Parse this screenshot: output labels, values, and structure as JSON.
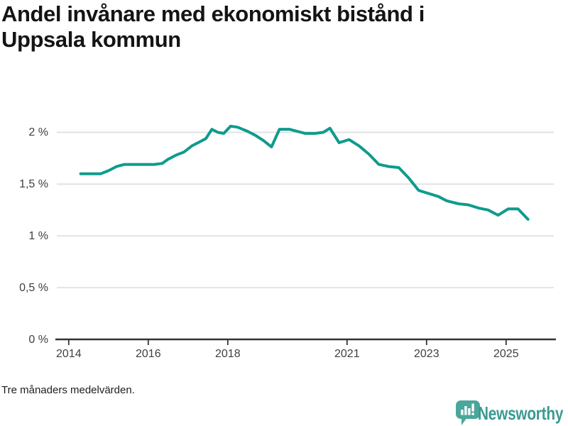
{
  "title": {
    "full": "Andel invånare med ekonomiskt bistånd i Uppsala kommun",
    "line1": "Andel invånare med ekonomiskt bistånd i",
    "line2": "Uppsala kommun"
  },
  "footnote": "Tre månaders medelvärden.",
  "branding": {
    "name": "Newsworthy",
    "icon": "newsworthy-speech-bubble-bar-chart-icon"
  },
  "colors": {
    "background": "#ffffff",
    "line": "#0f9b8d",
    "grid": "#e0e0e0",
    "axis": "#333333",
    "tick_label": "#404040",
    "title_text": "#141414",
    "footnote_text": "#1d1d1d",
    "brand_icon": "#4ba69b",
    "brand_text": "#3a9a90"
  },
  "chart_data": {
    "type": "line",
    "title": "Andel invånare med ekonomiskt bistånd i Uppsala kommun",
    "subtitle": "Tre månaders medelvärden.",
    "unit": "%",
    "decimal_separator": ",",
    "grid": "horizontal",
    "legend": "none",
    "xlim": [
      2013.7,
      2026.2
    ],
    "ylim": [
      0,
      2.25
    ],
    "y_ticks": [
      {
        "label": "0 %",
        "value": 0
      },
      {
        "label": "0,5 %",
        "value": 0.5
      },
      {
        "label": "1 %",
        "value": 1
      },
      {
        "label": "1,5 %",
        "value": 1.5
      },
      {
        "label": "2 %",
        "value": 2
      }
    ],
    "x_ticks": [
      {
        "label": "2014",
        "year": 2014
      },
      {
        "label": "2016",
        "year": 2016
      },
      {
        "label": "2018",
        "year": 2018
      },
      {
        "label": "2021",
        "year": 2021
      },
      {
        "label": "2023",
        "year": 2023
      },
      {
        "label": "2025",
        "year": 2025
      }
    ],
    "series": [
      {
        "name": "Andel invånare med ekonomiskt bistånd, Uppsala kommun",
        "points": [
          [
            2014.3,
            1.6
          ],
          [
            2014.55,
            1.6
          ],
          [
            2014.8,
            1.6
          ],
          [
            2015.0,
            1.63
          ],
          [
            2015.2,
            1.67
          ],
          [
            2015.4,
            1.69
          ],
          [
            2015.65,
            1.69
          ],
          [
            2015.9,
            1.69
          ],
          [
            2016.15,
            1.69
          ],
          [
            2016.35,
            1.7
          ],
          [
            2016.5,
            1.74
          ],
          [
            2016.7,
            1.78
          ],
          [
            2016.9,
            1.81
          ],
          [
            2017.1,
            1.87
          ],
          [
            2017.3,
            1.91
          ],
          [
            2017.45,
            1.94
          ],
          [
            2017.6,
            2.03
          ],
          [
            2017.75,
            2.0
          ],
          [
            2017.9,
            1.99
          ],
          [
            2018.07,
            2.06
          ],
          [
            2018.25,
            2.05
          ],
          [
            2018.5,
            2.01
          ],
          [
            2018.7,
            1.97
          ],
          [
            2018.9,
            1.92
          ],
          [
            2019.1,
            1.86
          ],
          [
            2019.3,
            2.03
          ],
          [
            2019.55,
            2.03
          ],
          [
            2019.75,
            2.01
          ],
          [
            2019.95,
            1.99
          ],
          [
            2020.2,
            1.99
          ],
          [
            2020.4,
            2.0
          ],
          [
            2020.57,
            2.04
          ],
          [
            2020.8,
            1.9
          ],
          [
            2021.05,
            1.93
          ],
          [
            2021.3,
            1.87
          ],
          [
            2021.55,
            1.79
          ],
          [
            2021.8,
            1.69
          ],
          [
            2022.05,
            1.67
          ],
          [
            2022.3,
            1.66
          ],
          [
            2022.55,
            1.56
          ],
          [
            2022.8,
            1.44
          ],
          [
            2023.05,
            1.41
          ],
          [
            2023.3,
            1.38
          ],
          [
            2023.5,
            1.34
          ],
          [
            2023.8,
            1.31
          ],
          [
            2024.05,
            1.3
          ],
          [
            2024.3,
            1.27
          ],
          [
            2024.55,
            1.25
          ],
          [
            2024.8,
            1.2
          ],
          [
            2025.05,
            1.26
          ],
          [
            2025.3,
            1.26
          ],
          [
            2025.55,
            1.16
          ]
        ]
      }
    ]
  }
}
